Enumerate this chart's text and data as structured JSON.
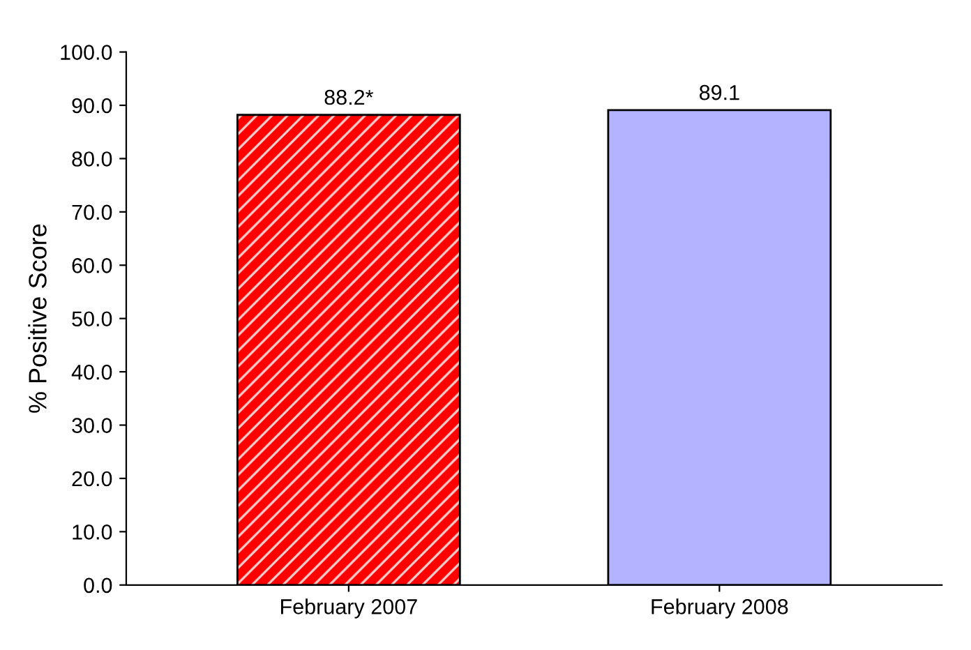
{
  "chart_data": {
    "type": "bar",
    "ylabel": "% Positive Score",
    "categories": [
      "February 2007",
      "February 2008"
    ],
    "values": [
      88.2,
      89.1
    ],
    "colors": [
      "#ff0000",
      "#b3b3ff"
    ],
    "value_labels": [
      "88.2*",
      "89.1"
    ],
    "ylim": [
      0,
      100
    ],
    "yticks": [
      {
        "value": 0,
        "label": "0.0"
      },
      {
        "value": 10,
        "label": "10.0"
      },
      {
        "value": 20,
        "label": "20.0"
      },
      {
        "value": 30,
        "label": "30.0"
      },
      {
        "value": 40,
        "label": "40.0"
      },
      {
        "value": 50,
        "label": "50.0"
      },
      {
        "value": 60,
        "label": "60.0"
      },
      {
        "value": 70,
        "label": "70.0"
      },
      {
        "value": 80,
        "label": "80.0"
      },
      {
        "value": 90,
        "label": "90.0"
      },
      {
        "value": 100,
        "label": "100.0"
      }
    ],
    "grid": false
  }
}
